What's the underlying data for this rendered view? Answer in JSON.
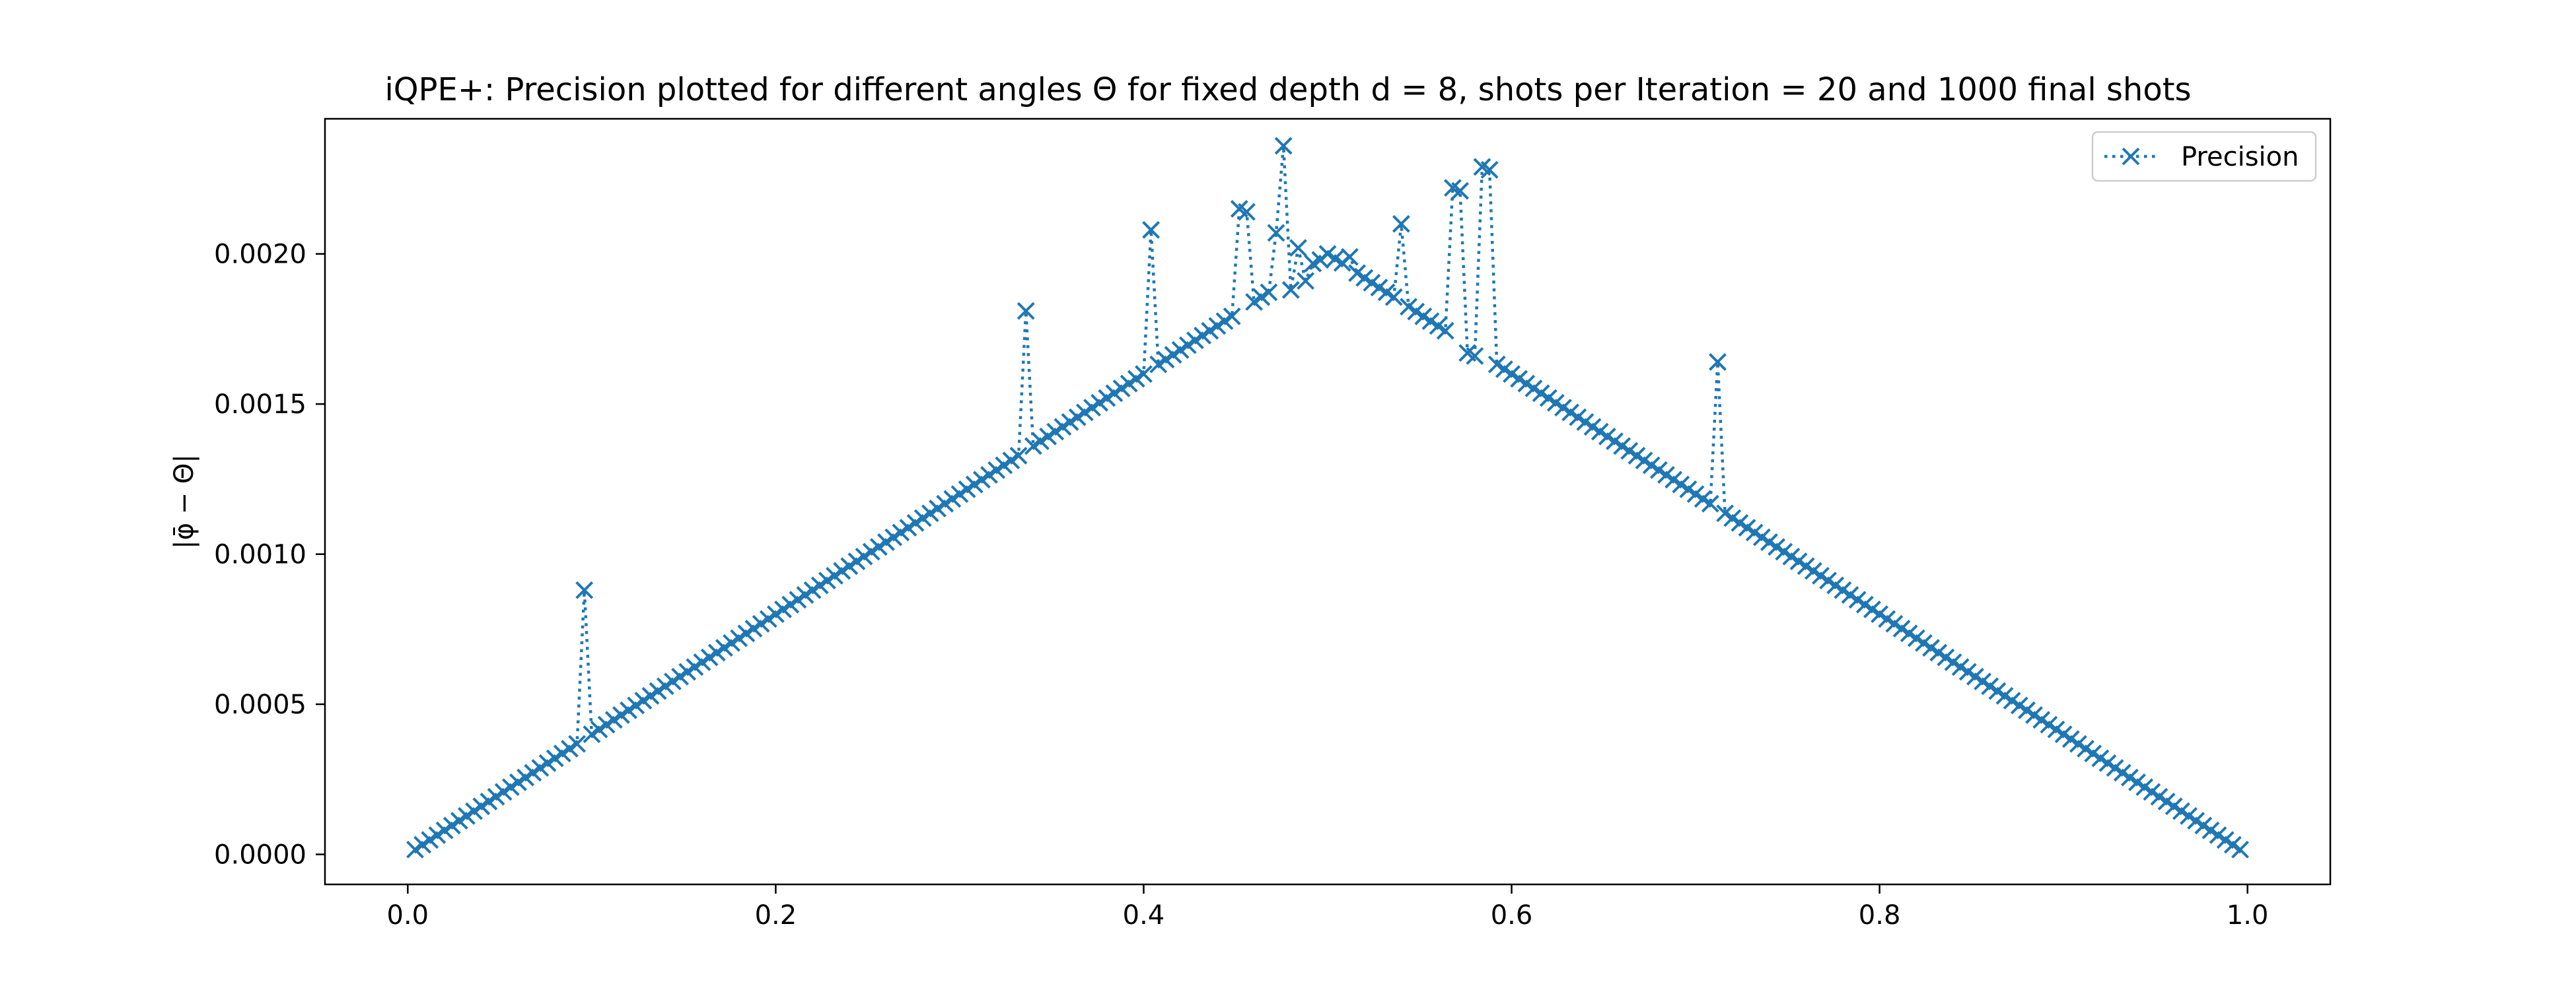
{
  "chart_data": {
    "type": "line",
    "title": "iQPE+: Precision plotted for different angles Θ for fixed depth d = 8, shots per Iteration = 20 and 1000 final shots",
    "xlabel": "",
    "ylabel": "|φ̄ − Θ|",
    "xlim": [
      -0.045,
      1.045
    ],
    "ylim": [
      -0.0001,
      0.00245
    ],
    "x_ticks": [
      0.0,
      0.2,
      0.4,
      0.6,
      0.8,
      1.0
    ],
    "x_tick_labels": [
      "0.0",
      "0.2",
      "0.4",
      "0.6",
      "0.8",
      "1.0"
    ],
    "y_ticks": [
      0.0,
      0.0005,
      0.001,
      0.0015,
      0.002
    ],
    "y_tick_labels": [
      "0.0000",
      "0.0005",
      "0.0010",
      "0.0015",
      "0.0020"
    ],
    "grid": false,
    "legend": {
      "position": "top-right",
      "entries": [
        "Precision"
      ]
    },
    "series": [
      {
        "name": "Precision",
        "color": "#1f77b4",
        "line_style": "dotted",
        "marker": "x",
        "x_range": {
          "start": 0.004,
          "stop": 0.996,
          "count": 249
        },
        "baseline": "triangular: 0.004·min(x, 1−x)",
        "outliers": [
          {
            "x": 0.096,
            "y": 0.00088
          },
          {
            "x": 0.336,
            "y": 0.00181
          },
          {
            "x": 0.404,
            "y": 0.00208
          },
          {
            "x": 0.452,
            "y": 0.00215
          },
          {
            "x": 0.456,
            "y": 0.00214
          },
          {
            "x": 0.472,
            "y": 0.00207
          },
          {
            "x": 0.476,
            "y": 0.00236
          },
          {
            "x": 0.48,
            "y": 0.00188
          },
          {
            "x": 0.484,
            "y": 0.00202
          },
          {
            "x": 0.488,
            "y": 0.00191
          },
          {
            "x": 0.496,
            "y": 0.00198
          },
          {
            "x": 0.508,
            "y": 0.00197
          },
          {
            "x": 0.512,
            "y": 0.00199
          },
          {
            "x": 0.54,
            "y": 0.0021
          },
          {
            "x": 0.568,
            "y": 0.00222
          },
          {
            "x": 0.572,
            "y": 0.00221
          },
          {
            "x": 0.576,
            "y": 0.00167
          },
          {
            "x": 0.58,
            "y": 0.00166
          },
          {
            "x": 0.584,
            "y": 0.00229
          },
          {
            "x": 0.588,
            "y": 0.00228
          },
          {
            "x": 0.712,
            "y": 0.00164
          }
        ]
      }
    ]
  }
}
